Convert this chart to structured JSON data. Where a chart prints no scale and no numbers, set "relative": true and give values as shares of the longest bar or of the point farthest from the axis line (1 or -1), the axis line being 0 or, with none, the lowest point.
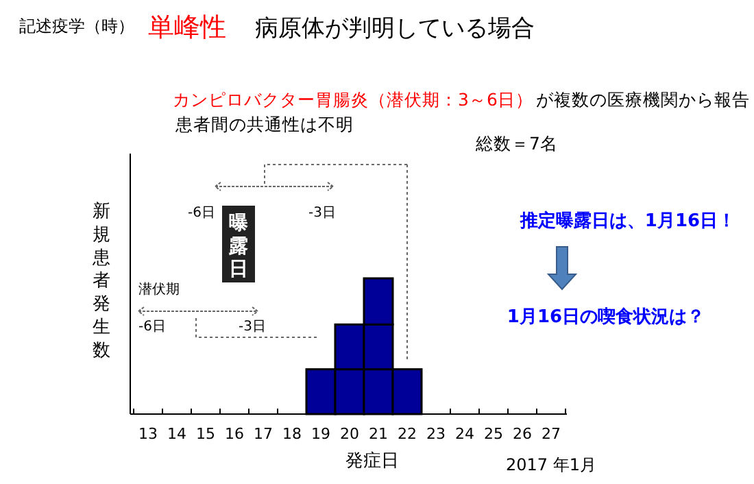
{
  "chart_data": {
    "type": "bar",
    "title": "単峰性",
    "subtitle": "病原体が判明している場合",
    "xlabel": "発症日",
    "ylabel": "新規患者発生数",
    "categories": [
      "13",
      "14",
      "15",
      "16",
      "17",
      "18",
      "19",
      "20",
      "21",
      "22",
      "23",
      "24",
      "25",
      "26",
      "27"
    ],
    "relative": true,
    "stacked": true,
    "series": [
      {
        "color": "#000099",
        "values": [
          null,
          null,
          null,
          null,
          null,
          null,
          0.33,
          0.33,
          0.33,
          0.33,
          null,
          null,
          null,
          null,
          null
        ]
      },
      {
        "color": "#000099",
        "values": [
          null,
          null,
          null,
          null,
          null,
          null,
          null,
          0.33,
          0.33,
          null,
          null,
          null,
          null,
          null,
          null
        ]
      },
      {
        "color": "#000099",
        "values": [
          null,
          null,
          null,
          null,
          null,
          null,
          null,
          null,
          0.34,
          null,
          null,
          null,
          null,
          null,
          null
        ]
      }
    ],
    "annotations": [
      "記述疫学（時）",
      "カンピロバクター胃腸炎（潜伏期：3～6日）",
      "が複数の医療機関から報告",
      "患者間の共通性は不明",
      "総数＝7名",
      "-6日",
      "-3日",
      "曝露日",
      "潜伏期",
      "-6日",
      "-3日",
      "推定曝露日は、1月16日！",
      "1月16日の喫食状況は？",
      "2017 年1月"
    ]
  }
}
